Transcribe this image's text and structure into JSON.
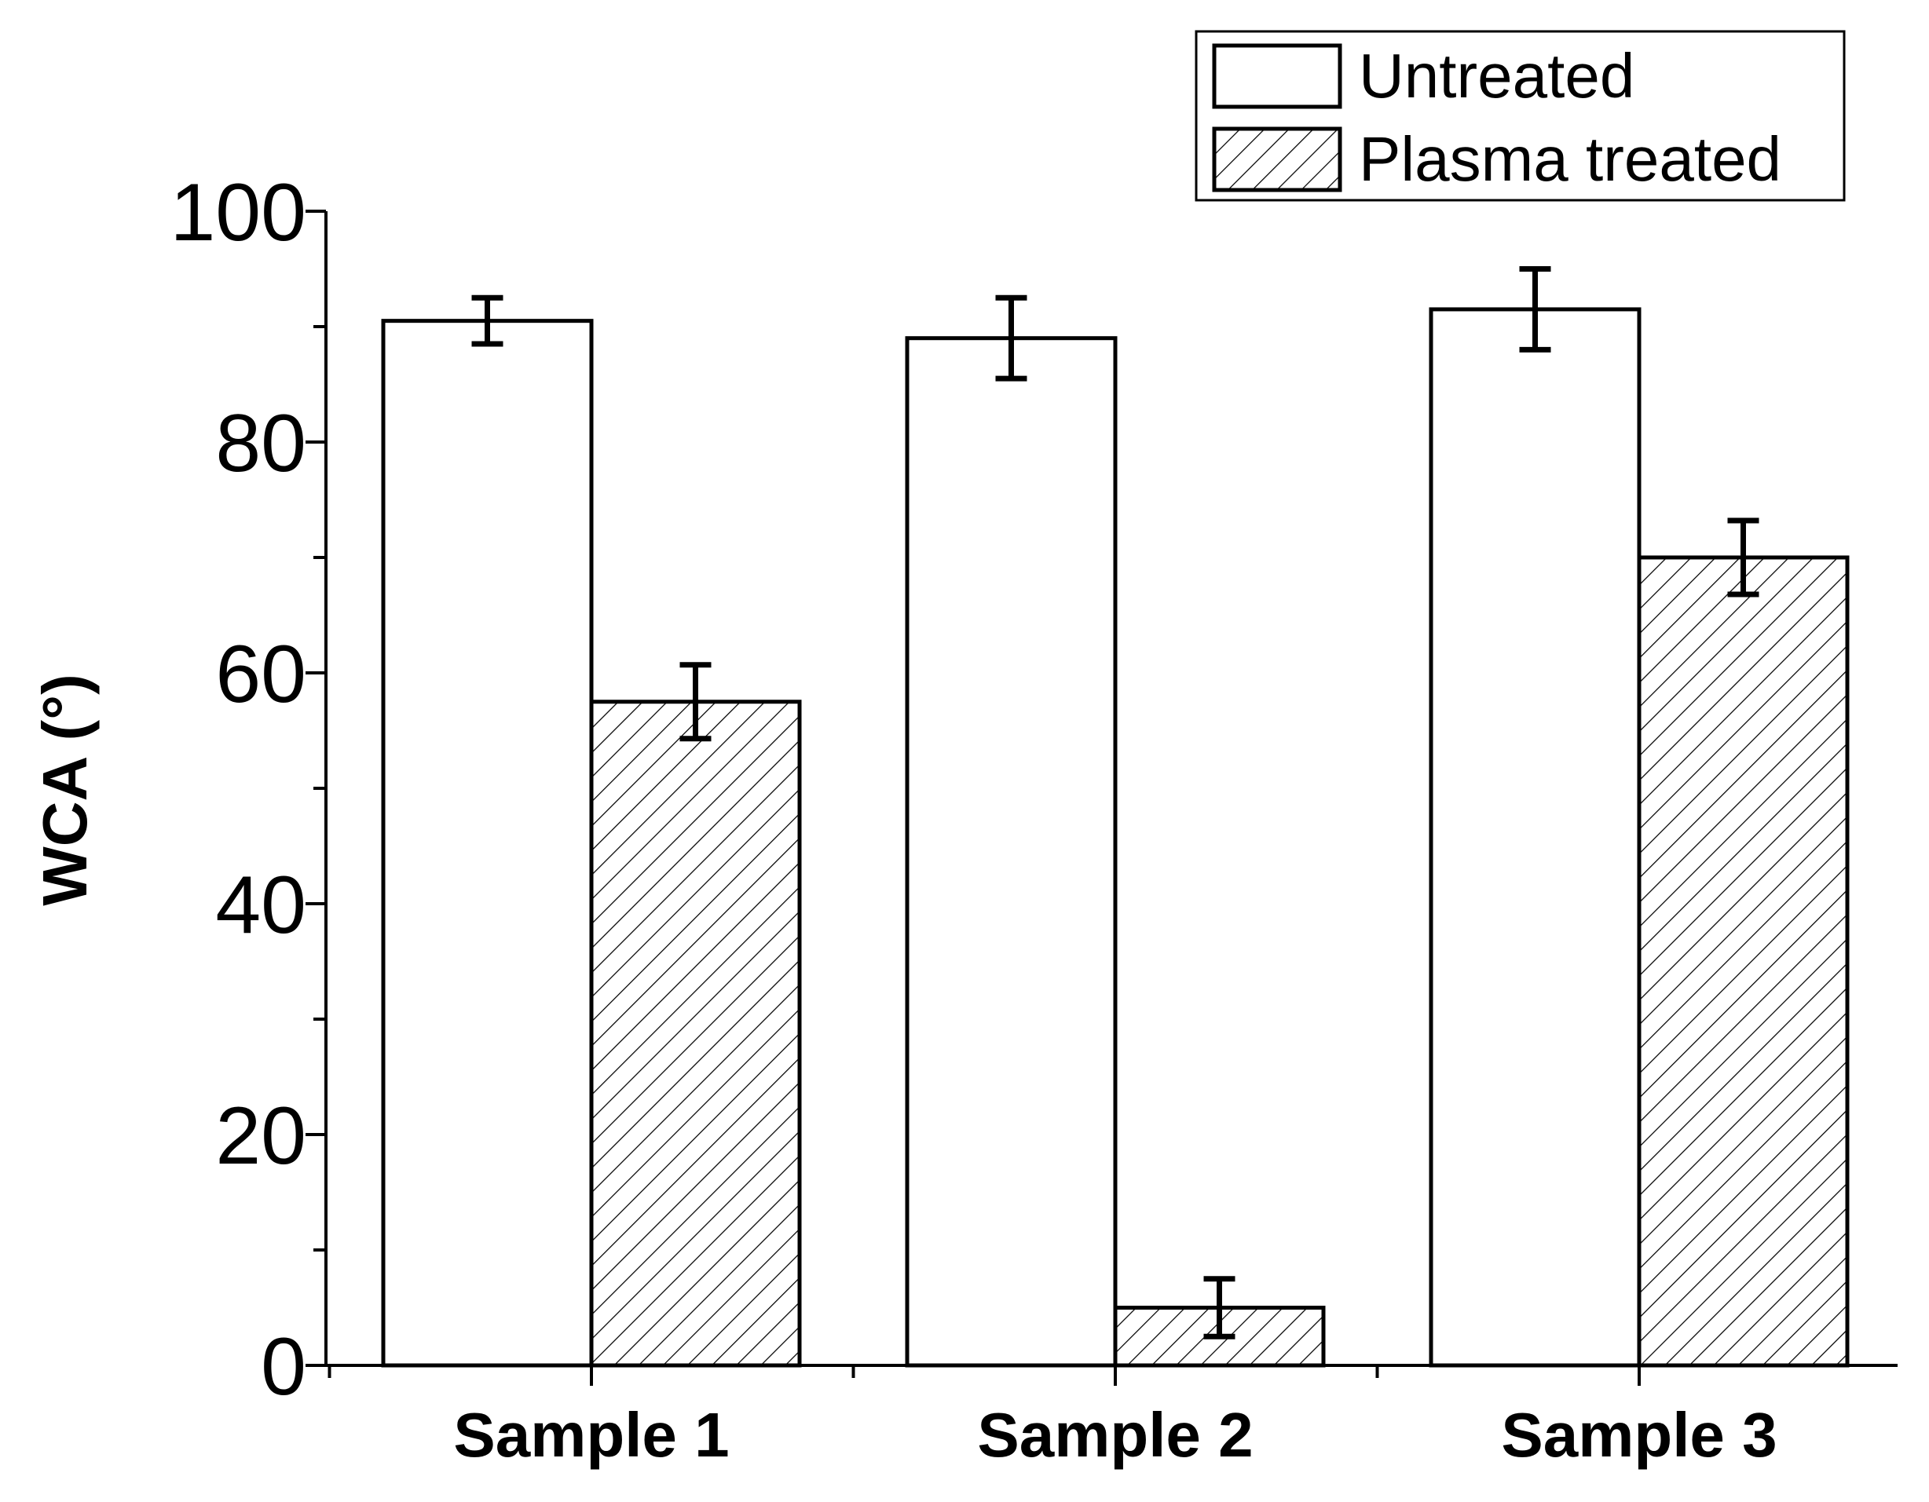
{
  "chart_data": {
    "type": "bar",
    "title": "",
    "xlabel": "",
    "ylabel": "WCA (°)",
    "ylim": [
      0,
      100
    ],
    "yticks": [
      0,
      20,
      40,
      60,
      80,
      100
    ],
    "categories": [
      "Sample 1",
      "Sample 2",
      "Sample 3"
    ],
    "series": [
      {
        "name": "Untreated",
        "pattern": "none",
        "values": [
          90.5,
          89,
          91.5
        ],
        "errors": [
          2,
          3.5,
          3.5
        ]
      },
      {
        "name": "Plasma treated",
        "pattern": "hatch",
        "values": [
          57.5,
          5,
          70
        ],
        "errors": [
          3.2,
          2.5,
          3.2
        ]
      }
    ],
    "legend_position": "top-right",
    "colors": {
      "bar_fill": "#ffffff",
      "stroke": "#000000",
      "hatch": "#000000"
    }
  }
}
